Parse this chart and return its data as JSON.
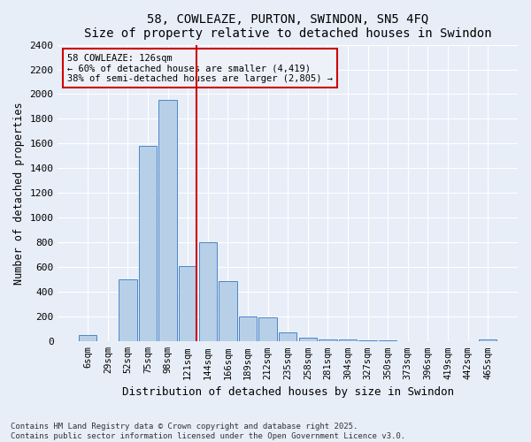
{
  "title": "58, COWLEAZE, PURTON, SWINDON, SN5 4FQ",
  "subtitle": "Size of property relative to detached houses in Swindon",
  "xlabel": "Distribution of detached houses by size in Swindon",
  "ylabel": "Number of detached properties",
  "categories": [
    "6sqm",
    "29sqm",
    "52sqm",
    "75sqm",
    "98sqm",
    "121sqm",
    "144sqm",
    "166sqm",
    "189sqm",
    "212sqm",
    "235sqm",
    "258sqm",
    "281sqm",
    "304sqm",
    "327sqm",
    "350sqm",
    "373sqm",
    "396sqm",
    "419sqm",
    "442sqm",
    "465sqm"
  ],
  "bar_heights": [
    55,
    0,
    500,
    1580,
    1950,
    610,
    800,
    490,
    200,
    195,
    75,
    30,
    20,
    20,
    10,
    10,
    5,
    0,
    0,
    0,
    20
  ],
  "bar_color": "#b8cfe8",
  "bar_edge_color": "#4a86c8",
  "vline_x_index": 5,
  "vline_color": "#cc0000",
  "annotation_text": "58 COWLEAZE: 126sqm\n← 60% of detached houses are smaller (4,419)\n38% of semi-detached houses are larger (2,805) →",
  "annotation_box_color": "#cc0000",
  "annotation_bg": "#eef2f8",
  "ylim": [
    0,
    2400
  ],
  "yticks": [
    0,
    200,
    400,
    600,
    800,
    1000,
    1200,
    1400,
    1600,
    1800,
    2000,
    2200,
    2400
  ],
  "bg_color": "#e8eef8",
  "grid_color": "#ffffff",
  "footer": "Contains HM Land Registry data © Crown copyright and database right 2025.\nContains public sector information licensed under the Open Government Licence v3.0.",
  "figsize": [
    6.0,
    5.0
  ],
  "dpi": 100
}
